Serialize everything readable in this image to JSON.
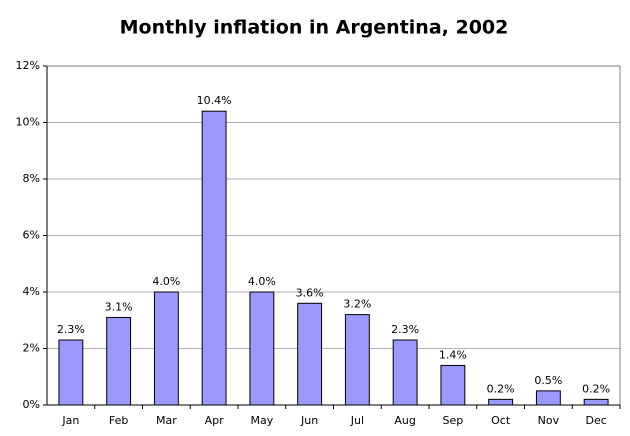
{
  "chart_data": {
    "type": "bar",
    "title": "Monthly inflation in Argentina, 2002",
    "categories": [
      "Jan",
      "Feb",
      "Mar",
      "Apr",
      "May",
      "Jun",
      "Jul",
      "Aug",
      "Sep",
      "Oct",
      "Nov",
      "Dec"
    ],
    "values": [
      2.3,
      3.1,
      4.0,
      10.4,
      4.0,
      3.6,
      3.2,
      2.3,
      1.4,
      0.2,
      0.5,
      0.2
    ],
    "value_labels": [
      "2.3%",
      "3.1%",
      "4.0%",
      "10.4%",
      "4.0%",
      "3.6%",
      "3.2%",
      "2.3%",
      "1.4%",
      "0.2%",
      "0.5%",
      "0.2%"
    ],
    "color": "#9999ff",
    "ylim": [
      0,
      12
    ],
    "yticks": [
      {
        "value": 0,
        "label": "0%"
      },
      {
        "value": 2,
        "label": "2%"
      },
      {
        "value": 4,
        "label": "4%"
      },
      {
        "value": 6,
        "label": "6%"
      },
      {
        "value": 8,
        "label": "8%"
      },
      {
        "value": 10,
        "label": "10%"
      },
      {
        "value": 12,
        "label": "12%"
      }
    ],
    "grid": true
  }
}
